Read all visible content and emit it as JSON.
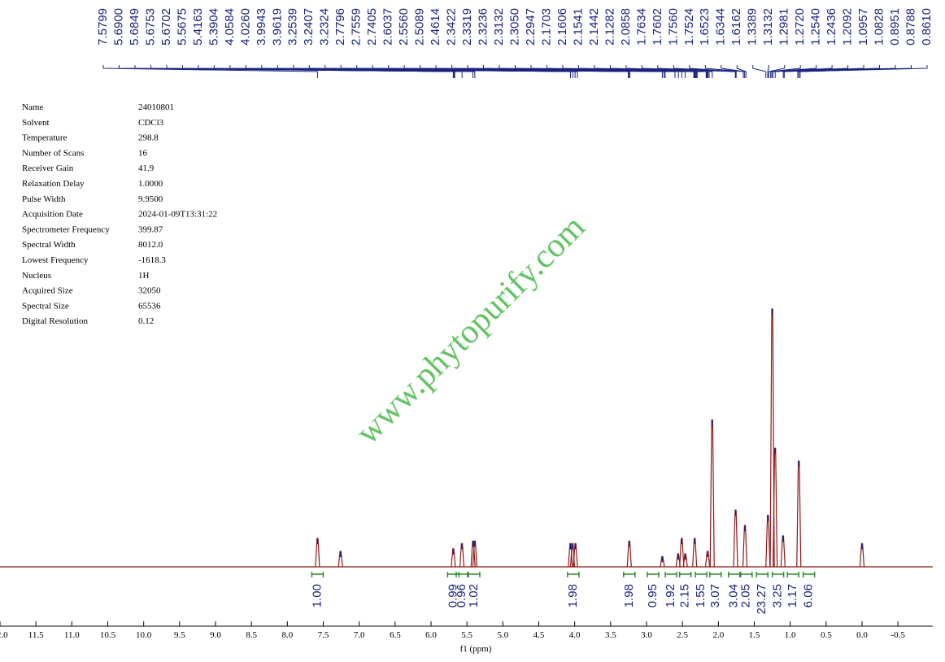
{
  "chart_data": {
    "type": "nmr",
    "xlabel": "f1 (ppm)",
    "watermark": "www.phytopurify.com",
    "xlim": [
      12.0,
      -0.985
    ],
    "xticks": [
      {
        "value": 12,
        "label": "12.0"
      },
      11.5,
      {
        "value": 11,
        "label": "11.0"
      },
      10.5,
      {
        "value": 10,
        "label": "10.0"
      },
      9.5,
      {
        "value": 9,
        "label": "9.0"
      },
      8.5,
      {
        "value": 8,
        "label": "8.0"
      },
      7.5,
      {
        "value": 7,
        "label": "7.0"
      },
      6.5,
      {
        "value": 6,
        "label": "6.0"
      },
      5.5,
      {
        "value": 5,
        "label": "5.0"
      },
      4.5,
      {
        "value": 4,
        "label": "4.0"
      },
      3.5,
      {
        "value": 3,
        "label": "3.0"
      },
      2.5,
      {
        "value": 2,
        "label": "2.0"
      },
      1.5,
      {
        "value": 1,
        "label": "1.0"
      },
      0.5,
      {
        "value": 0,
        "label": "0.0"
      },
      -0.5
    ],
    "ylim": [
      0,
      100
    ],
    "peak_labels": [
      "7.5799",
      "5.6900",
      "5.6849",
      "5.6753",
      "5.6702",
      "5.5675",
      "5.4163",
      "5.3904",
      "4.0584",
      "4.0260",
      "3.9943",
      "3.9619",
      "3.2539",
      "3.2407",
      "3.2324",
      "2.7796",
      "2.7559",
      "2.7405",
      "2.6037",
      "2.5560",
      "2.5089",
      "2.4614",
      "2.3422",
      "2.3319",
      "2.3236",
      "2.3132",
      "2.3050",
      "2.2947",
      "2.1703",
      "2.1606",
      "2.1541",
      "2.1442",
      "2.1282",
      "2.0858",
      "1.7634",
      "1.7602",
      "1.7560",
      "1.7524",
      "1.6523",
      "1.6344",
      "1.6162",
      "1.3389",
      "1.3132",
      "1.2981",
      "1.2720",
      "1.2540",
      "1.2436",
      "1.2092",
      "1.0957",
      "1.0828",
      "0.8951",
      "0.8788",
      "0.8610"
    ],
    "parameters": [
      [
        "Name",
        "24010801"
      ],
      [
        "Solvent",
        "CDCl3"
      ],
      [
        "Temperature",
        "298.8"
      ],
      [
        "Number of Scans",
        "16"
      ],
      [
        "Receiver Gain",
        "41.9"
      ],
      [
        "Relaxation Delay",
        "1.0000"
      ],
      [
        "Pulse Width",
        "9.9500"
      ],
      [
        "Acquisition Date",
        "2024-01-09T13:31:22"
      ],
      [
        "Spectrometer Frequency",
        "399.87"
      ],
      [
        "Spectral Width",
        "8012.0"
      ],
      [
        "Lowest Frequency",
        "-1618.3"
      ],
      [
        "Nucleus",
        "1H"
      ],
      [
        "Acquired Size",
        "32050"
      ],
      [
        "Spectral Size",
        "65536"
      ],
      [
        "Digital Resolution",
        "0.12"
      ]
    ],
    "peaks": {
      "x": [
        7.58,
        7.26,
        5.69,
        5.57,
        5.415,
        5.39,
        4.06,
        4.03,
        3.99,
        3.24,
        2.78,
        2.56,
        2.51,
        2.46,
        2.33,
        2.15,
        2.086,
        1.76,
        1.63,
        1.31,
        1.25,
        1.21,
        1.1,
        0.88,
        0.0
      ],
      "values": [
        11,
        6,
        7,
        9,
        10,
        10,
        9,
        9,
        9,
        10,
        4,
        5,
        11,
        5,
        11,
        6,
        57,
        22,
        16,
        20,
        100,
        46,
        12,
        41,
        9
      ]
    },
    "integrals": {
      "x": [
        7.58,
        5.69,
        5.57,
        5.4,
        4.02,
        3.24,
        2.91,
        2.66,
        2.46,
        2.24,
        2.04,
        1.78,
        1.61,
        1.39,
        1.17,
        0.96,
        0.74
      ],
      "values": [
        1.0,
        0.99,
        0.96,
        1.02,
        1.98,
        1.98,
        0.95,
        1.92,
        2.15,
        1.55,
        3.07,
        3.04,
        2.05,
        23.27,
        3.25,
        1.17,
        6.06
      ],
      "value_labels": [
        "1.00",
        "0.99",
        "0.96",
        "1.02",
        "1.98",
        "1.98",
        "0.95",
        "1.92",
        "2.15",
        "1.55",
        "3.07",
        "3.04",
        "2.05",
        "23.27",
        "3.25",
        "1.17",
        "6.06"
      ]
    }
  }
}
